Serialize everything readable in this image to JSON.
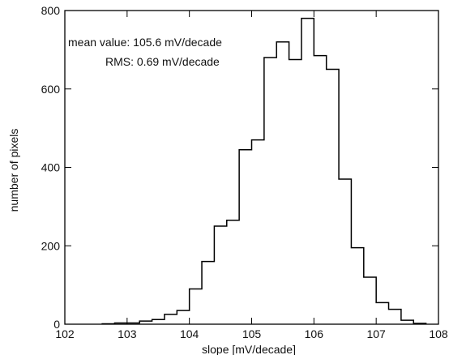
{
  "chart_data": {
    "type": "bar",
    "title": "",
    "xlabel": "slope [mV/decade]",
    "ylabel": "number of pixels",
    "xlim": [
      102,
      108
    ],
    "ylim": [
      0,
      800
    ],
    "x_ticks": [
      102,
      103,
      104,
      105,
      106,
      107,
      108
    ],
    "y_ticks": [
      0,
      200,
      400,
      600,
      800
    ],
    "grid": false,
    "legend": "none",
    "annotations": [
      "mean value: 105.6 mV/decade",
      "RMS: 0.69 mV/decade"
    ],
    "bin_width": 0.2,
    "bins_left_edge": [
      102.6,
      102.8,
      103.0,
      103.2,
      103.4,
      103.6,
      103.8,
      104.0,
      104.2,
      104.4,
      104.6,
      104.8,
      105.0,
      105.2,
      105.4,
      105.6,
      105.8,
      106.0,
      106.2,
      106.4,
      106.6,
      106.8,
      107.0,
      107.2,
      107.4,
      107.6
    ],
    "values": [
      1,
      3,
      3,
      8,
      12,
      25,
      35,
      90,
      160,
      250,
      265,
      445,
      470,
      680,
      720,
      675,
      780,
      685,
      650,
      370,
      195,
      120,
      55,
      38,
      10,
      2
    ],
    "color": "#000000"
  }
}
